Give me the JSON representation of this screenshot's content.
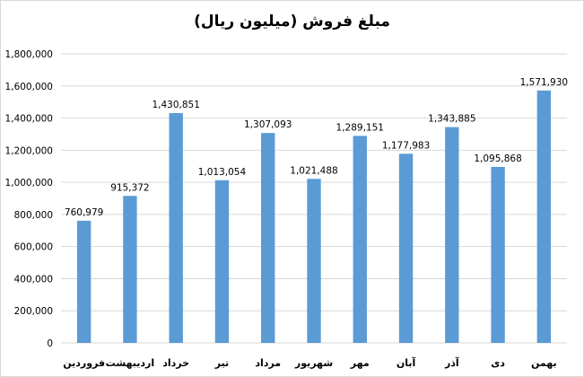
{
  "chart_data": {
    "type": "bar",
    "title": "مبلغ فروش (میلیون ریال)",
    "xlabel": "",
    "ylabel": "",
    "categories": [
      "فروردین",
      "اردیبهشت",
      "خرداد",
      "تیر",
      "مرداد",
      "شهریور",
      "مهر",
      "آبان",
      "آذر",
      "دی",
      "بهمن"
    ],
    "values": [
      760979,
      915372,
      1430851,
      1013054,
      1307093,
      1021488,
      1289151,
      1177983,
      1343885,
      1095868,
      1571930
    ],
    "data_labels": [
      "760,979",
      "915,372",
      "1,430,851",
      "1,013,054",
      "1,307,093",
      "1,021,488",
      "1,289,151",
      "1,177,983",
      "1,343,885",
      "1,095,868",
      "1,571,930"
    ],
    "ylim": [
      0,
      1800000
    ],
    "yticks": [
      0,
      200000,
      400000,
      600000,
      800000,
      1000000,
      1200000,
      1400000,
      1600000,
      1800000
    ],
    "ytick_labels": [
      "0",
      "200,000",
      "400,000",
      "600,000",
      "800,000",
      "1,000,000",
      "1,200,000",
      "1,400,000",
      "1,600,000",
      "1,800,000"
    ],
    "grid": true,
    "legend": "none",
    "bar_color": "#5b9bd5",
    "grid_color": "#d9d9d9"
  }
}
